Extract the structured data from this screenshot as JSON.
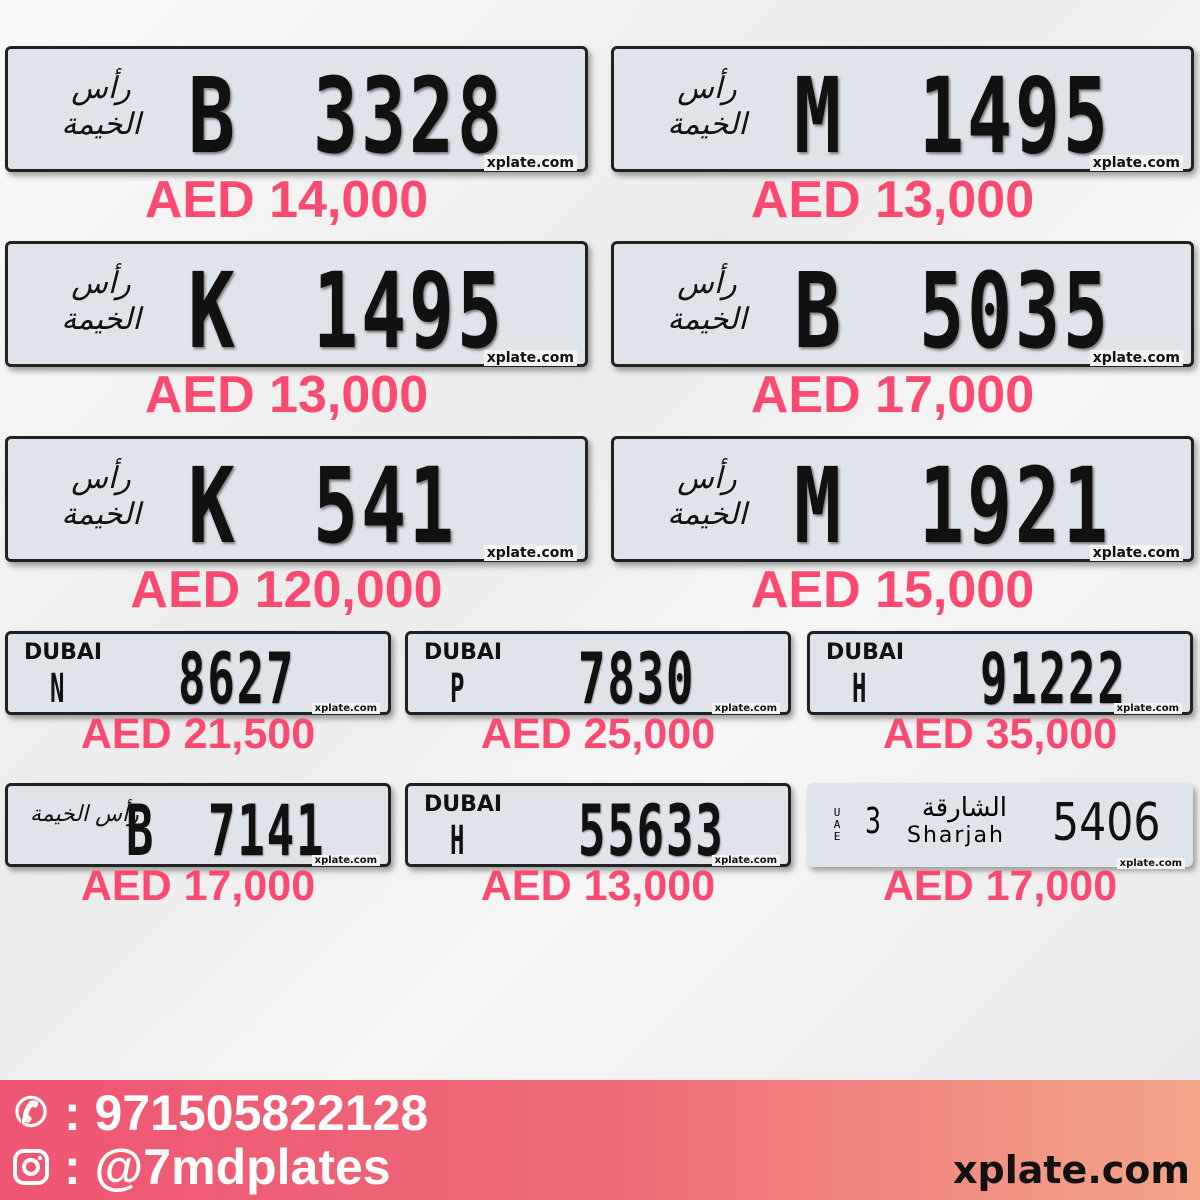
{
  "watermark": "xplate.com",
  "big_plates": [
    {
      "emirate": "Ras Al Khaimah",
      "emblem": "رأس الخيمة",
      "letter": "B",
      "number": "3328",
      "price": "AED 14,000"
    },
    {
      "emirate": "Ras Al Khaimah",
      "emblem": "رأس الخيمة",
      "letter": "M",
      "number": "1495",
      "price": "AED 13,000"
    },
    {
      "emirate": "Ras Al Khaimah",
      "emblem": "رأس الخيمة",
      "letter": "K",
      "number": "1495",
      "price": "AED 13,000"
    },
    {
      "emirate": "Ras Al Khaimah",
      "emblem": "رأس الخيمة",
      "letter": "B",
      "number": "5035",
      "price": "AED 17,000"
    },
    {
      "emirate": "Ras Al Khaimah",
      "emblem": "رأس الخيمة",
      "letter": "K",
      "number": "541",
      "price": "AED 120,000"
    },
    {
      "emirate": "Ras Al Khaimah",
      "emblem": "رأس الخيمة",
      "letter": "M",
      "number": "1921",
      "price": "AED 15,000"
    }
  ],
  "small_plates": [
    {
      "emirate": "Dubai",
      "emblem": "DUBAI",
      "letter": "N",
      "number": "8627",
      "price": "AED 21,500"
    },
    {
      "emirate": "Dubai",
      "emblem": "DUBAI",
      "letter": "P",
      "number": "7830",
      "price": "AED 25,000"
    },
    {
      "emirate": "Dubai",
      "emblem": "DUBAI",
      "letter": "H",
      "number": "91222",
      "price": "AED 35,000"
    },
    {
      "emirate": "Ras Al Khaimah",
      "emblem": "رأس الخيمة",
      "letter": "B",
      "number": "7141",
      "price": "AED 17,000"
    },
    {
      "emirate": "Dubai",
      "emblem": "DUBAI",
      "letter": "H",
      "number": "55633",
      "price": "AED 13,000"
    }
  ],
  "sharjah_plate": {
    "country": "UAE",
    "code": "3",
    "emirate_ar": "الشارقة",
    "emirate_en": "Sharjah",
    "number": "5406",
    "price": "AED 17,000"
  },
  "footer": {
    "phone": ": 971505822128",
    "instagram": ": @7mdplates",
    "phone_icon": "phone-icon",
    "instagram_icon": "instagram-icon",
    "site": "xplate.com"
  },
  "colors": {
    "price": "#fa4a72",
    "footer_start": "#ef5572",
    "footer_end": "#f3a58a"
  }
}
